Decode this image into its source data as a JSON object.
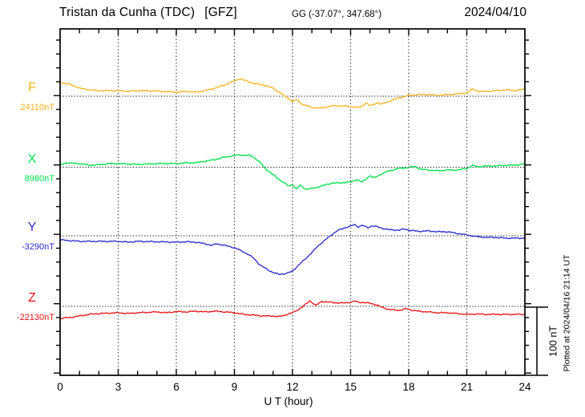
{
  "header": {
    "station_title": "Tristan da Cunha (TDC)",
    "institute": "[GFZ]",
    "coords": "GG (-37.07°, 347.68°)",
    "date": "2024/04/10"
  },
  "footer": {
    "xlabel": "U T (hour)"
  },
  "scale_bar_label": "100 nT",
  "plotted_note": "Plotted at 2024/04/16 21:14 UT",
  "chart_data": {
    "type": "line",
    "title": "Magnetogram Tristan da Cunha (TDC) [GFZ] 2024/04/10",
    "xlabel": "U T (hour)",
    "x_unit": "hour UT",
    "x_range": [
      0,
      24
    ],
    "x_ticks": [
      0,
      3,
      6,
      9,
      12,
      15,
      18,
      21,
      24
    ],
    "x_minor_tick_step_hours": 1,
    "grid": "dotted vertical lines every 3 h; dotted horizontal baseline per channel",
    "legend_position": "left margin, one colored label per channel",
    "scale_bar": {
      "label": "100 nT",
      "nT": 100
    },
    "y_minor_tick_step_nT": 20,
    "y_unit": "nT offset from channel baseline",
    "series": [
      {
        "name": "F",
        "baseline_nT": 24110,
        "baseline_label": "24110nT",
        "color": "#FFB31E",
        "points": [
          [
            0,
            20
          ],
          [
            0.5,
            17.6
          ],
          [
            1,
            11.8
          ],
          [
            1.5,
            9.4
          ],
          [
            2,
            8.2
          ],
          [
            3,
            8.2
          ],
          [
            3.5,
            7.1
          ],
          [
            4,
            8.2
          ],
          [
            5,
            7.6
          ],
          [
            6,
            5.9
          ],
          [
            6.5,
            7.1
          ],
          [
            7,
            5.9
          ],
          [
            7.5,
            8.2
          ],
          [
            8,
            11.8
          ],
          [
            8.5,
            16.5
          ],
          [
            9,
            22.4
          ],
          [
            9.3,
            25.9
          ],
          [
            9.5,
            23.5
          ],
          [
            10,
            18.8
          ],
          [
            10.5,
            16.5
          ],
          [
            11,
            11.8
          ],
          [
            11.5,
            2.4
          ],
          [
            11.8,
            -3.5
          ],
          [
            12,
            -8.2
          ],
          [
            12.2,
            -4.7
          ],
          [
            12.5,
            -11.8
          ],
          [
            13,
            -16.5
          ],
          [
            13.5,
            -17.6
          ],
          [
            14,
            -14.1
          ],
          [
            14.5,
            -14.1
          ],
          [
            15,
            -15.3
          ],
          [
            15.5,
            -16.5
          ],
          [
            15.8,
            -9.4
          ],
          [
            16,
            -14.1
          ],
          [
            16.4,
            -9.4
          ],
          [
            16.6,
            -11.8
          ],
          [
            17,
            -7.1
          ],
          [
            17.5,
            -2.4
          ],
          [
            18,
            1.2
          ],
          [
            18.5,
            2.4
          ],
          [
            19,
            2.4
          ],
          [
            19.5,
            1.2
          ],
          [
            20,
            2.4
          ],
          [
            20.5,
            3.5
          ],
          [
            21,
            4.7
          ],
          [
            21.3,
            10.6
          ],
          [
            21.6,
            7.1
          ],
          [
            22,
            7.1
          ],
          [
            22.5,
            8.2
          ],
          [
            23,
            9.4
          ],
          [
            23.5,
            8.2
          ],
          [
            24,
            10.6
          ]
        ]
      },
      {
        "name": "X",
        "baseline_nT": 8980,
        "baseline_label": "8980nT",
        "color": "#00DF4C",
        "points": [
          [
            0,
            2.9
          ],
          [
            0.3,
            6.5
          ],
          [
            1,
            5.3
          ],
          [
            1.5,
            2.9
          ],
          [
            2,
            3.5
          ],
          [
            2.5,
            5.3
          ],
          [
            3,
            5.3
          ],
          [
            4,
            4.1
          ],
          [
            5,
            5.3
          ],
          [
            6,
            5.3
          ],
          [
            6.5,
            6.5
          ],
          [
            7,
            6.5
          ],
          [
            7.5,
            8.8
          ],
          [
            8,
            11.2
          ],
          [
            8.5,
            14.7
          ],
          [
            9,
            17.1
          ],
          [
            9.3,
            18.2
          ],
          [
            9.6,
            17.1
          ],
          [
            9.8,
            17.6
          ],
          [
            10,
            14.7
          ],
          [
            10.3,
            7.6
          ],
          [
            10.6,
            -1.8
          ],
          [
            11,
            -11.2
          ],
          [
            11.5,
            -21.8
          ],
          [
            11.8,
            -27.6
          ],
          [
            12,
            -25.3
          ],
          [
            12.2,
            -32.4
          ],
          [
            12.4,
            -26.5
          ],
          [
            12.7,
            -32.4
          ],
          [
            13,
            -31.2
          ],
          [
            13.5,
            -27.6
          ],
          [
            14,
            -23.5
          ],
          [
            14.5,
            -22.9
          ],
          [
            15,
            -21.8
          ],
          [
            15.3,
            -18.2
          ],
          [
            15.6,
            -21.8
          ],
          [
            16,
            -12.4
          ],
          [
            16.2,
            -15.9
          ],
          [
            16.5,
            -11.2
          ],
          [
            17,
            -5.3
          ],
          [
            17.5,
            -1.8
          ],
          [
            18,
            -0.6
          ],
          [
            18.3,
            1.2
          ],
          [
            18.6,
            -2.9
          ],
          [
            19,
            -4.1
          ],
          [
            19.5,
            -5.3
          ],
          [
            20,
            -4.1
          ],
          [
            20.5,
            -4.1
          ],
          [
            21,
            -1.8
          ],
          [
            21.3,
            2.4
          ],
          [
            21.6,
            0.6
          ],
          [
            22,
            1.8
          ],
          [
            22.5,
            1.8
          ],
          [
            23,
            2.9
          ],
          [
            23.5,
            2.9
          ],
          [
            24,
            5.3
          ]
        ]
      },
      {
        "name": "Y",
        "baseline_nT": -3290,
        "baseline_label": "-3290nT",
        "color": "#2B2BCE",
        "points": [
          [
            0,
            -5.9
          ],
          [
            0.5,
            -7.1
          ],
          [
            1,
            -8.2
          ],
          [
            2,
            -8.2
          ],
          [
            3,
            -8.2
          ],
          [
            3.5,
            -9.4
          ],
          [
            4,
            -8.2
          ],
          [
            5,
            -8.8
          ],
          [
            6,
            -9.4
          ],
          [
            6.5,
            -8.8
          ],
          [
            7,
            -9.4
          ],
          [
            7.5,
            -11.8
          ],
          [
            7.8,
            -14.1
          ],
          [
            8.1,
            -11.8
          ],
          [
            8.5,
            -14.1
          ],
          [
            9,
            -17.6
          ],
          [
            9.3,
            -21.2
          ],
          [
            9.7,
            -27.1
          ],
          [
            10,
            -32.9
          ],
          [
            10.3,
            -42.4
          ],
          [
            10.7,
            -49.4
          ],
          [
            11,
            -54.1
          ],
          [
            11.3,
            -56.5
          ],
          [
            11.7,
            -55.3
          ],
          [
            12,
            -51.8
          ],
          [
            12.3,
            -43.5
          ],
          [
            12.7,
            -32.9
          ],
          [
            13,
            -24.7
          ],
          [
            13.3,
            -15.3
          ],
          [
            13.7,
            -5.9
          ],
          [
            14,
            1.2
          ],
          [
            14.3,
            7.1
          ],
          [
            14.7,
            11.8
          ],
          [
            15,
            14.1
          ],
          [
            15.2,
            16.5
          ],
          [
            15.4,
            12.9
          ],
          [
            15.6,
            15.3
          ],
          [
            15.9,
            11.8
          ],
          [
            16.1,
            14.7
          ],
          [
            16.4,
            12.9
          ],
          [
            16.7,
            10.6
          ],
          [
            17,
            8.8
          ],
          [
            17.5,
            8.2
          ],
          [
            17.8,
            10
          ],
          [
            18,
            8.2
          ],
          [
            18.5,
            6.5
          ],
          [
            19,
            7.1
          ],
          [
            19.5,
            5.9
          ],
          [
            20,
            5.9
          ],
          [
            20.5,
            3.5
          ],
          [
            21,
            1.2
          ],
          [
            21.5,
            -1.2
          ],
          [
            22,
            -2.4
          ],
          [
            22.5,
            -2.4
          ],
          [
            23,
            -3.5
          ],
          [
            23.5,
            -3.5
          ],
          [
            24,
            -3.5
          ]
        ]
      },
      {
        "name": "Z",
        "baseline_nT": -22130,
        "baseline_label": "-22130nT",
        "color": "#EE1515",
        "points": [
          [
            0,
            -17.6
          ],
          [
            0.5,
            -16.5
          ],
          [
            1,
            -14.1
          ],
          [
            1.5,
            -11.8
          ],
          [
            2,
            -10.6
          ],
          [
            3,
            -9.4
          ],
          [
            3.5,
            -10.6
          ],
          [
            4,
            -9.4
          ],
          [
            5,
            -8.2
          ],
          [
            5.5,
            -9.4
          ],
          [
            6,
            -7.6
          ],
          [
            6.5,
            -8.2
          ],
          [
            7,
            -7.1
          ],
          [
            7.5,
            -8.2
          ],
          [
            8,
            -7.1
          ],
          [
            8.5,
            -8.2
          ],
          [
            9,
            -9.4
          ],
          [
            9.5,
            -11.8
          ],
          [
            10,
            -12.9
          ],
          [
            10.5,
            -14.1
          ],
          [
            11,
            -14.1
          ],
          [
            11.3,
            -15.3
          ],
          [
            11.6,
            -12.9
          ],
          [
            12,
            -9.4
          ],
          [
            12.3,
            -4.7
          ],
          [
            12.5,
            -1.2
          ],
          [
            12.7,
            3.5
          ],
          [
            12.9,
            8.2
          ],
          [
            13.2,
            1.2
          ],
          [
            13.5,
            7.1
          ],
          [
            14,
            5.9
          ],
          [
            14.5,
            4.7
          ],
          [
            15,
            5.9
          ],
          [
            15.2,
            7.6
          ],
          [
            15.5,
            5.9
          ],
          [
            16,
            4.7
          ],
          [
            16.3,
            2.4
          ],
          [
            16.6,
            -1.2
          ],
          [
            17,
            -4.7
          ],
          [
            17.5,
            -5.9
          ],
          [
            17.9,
            -3.5
          ],
          [
            18.2,
            -5.9
          ],
          [
            18.5,
            -7.1
          ],
          [
            19,
            -8.2
          ],
          [
            19.5,
            -9.4
          ],
          [
            20,
            -9.4
          ],
          [
            20.5,
            -10.6
          ],
          [
            21,
            -11.8
          ],
          [
            21.5,
            -11.2
          ],
          [
            22,
            -11.8
          ],
          [
            23,
            -11.8
          ],
          [
            24,
            -11.8
          ]
        ]
      }
    ]
  }
}
